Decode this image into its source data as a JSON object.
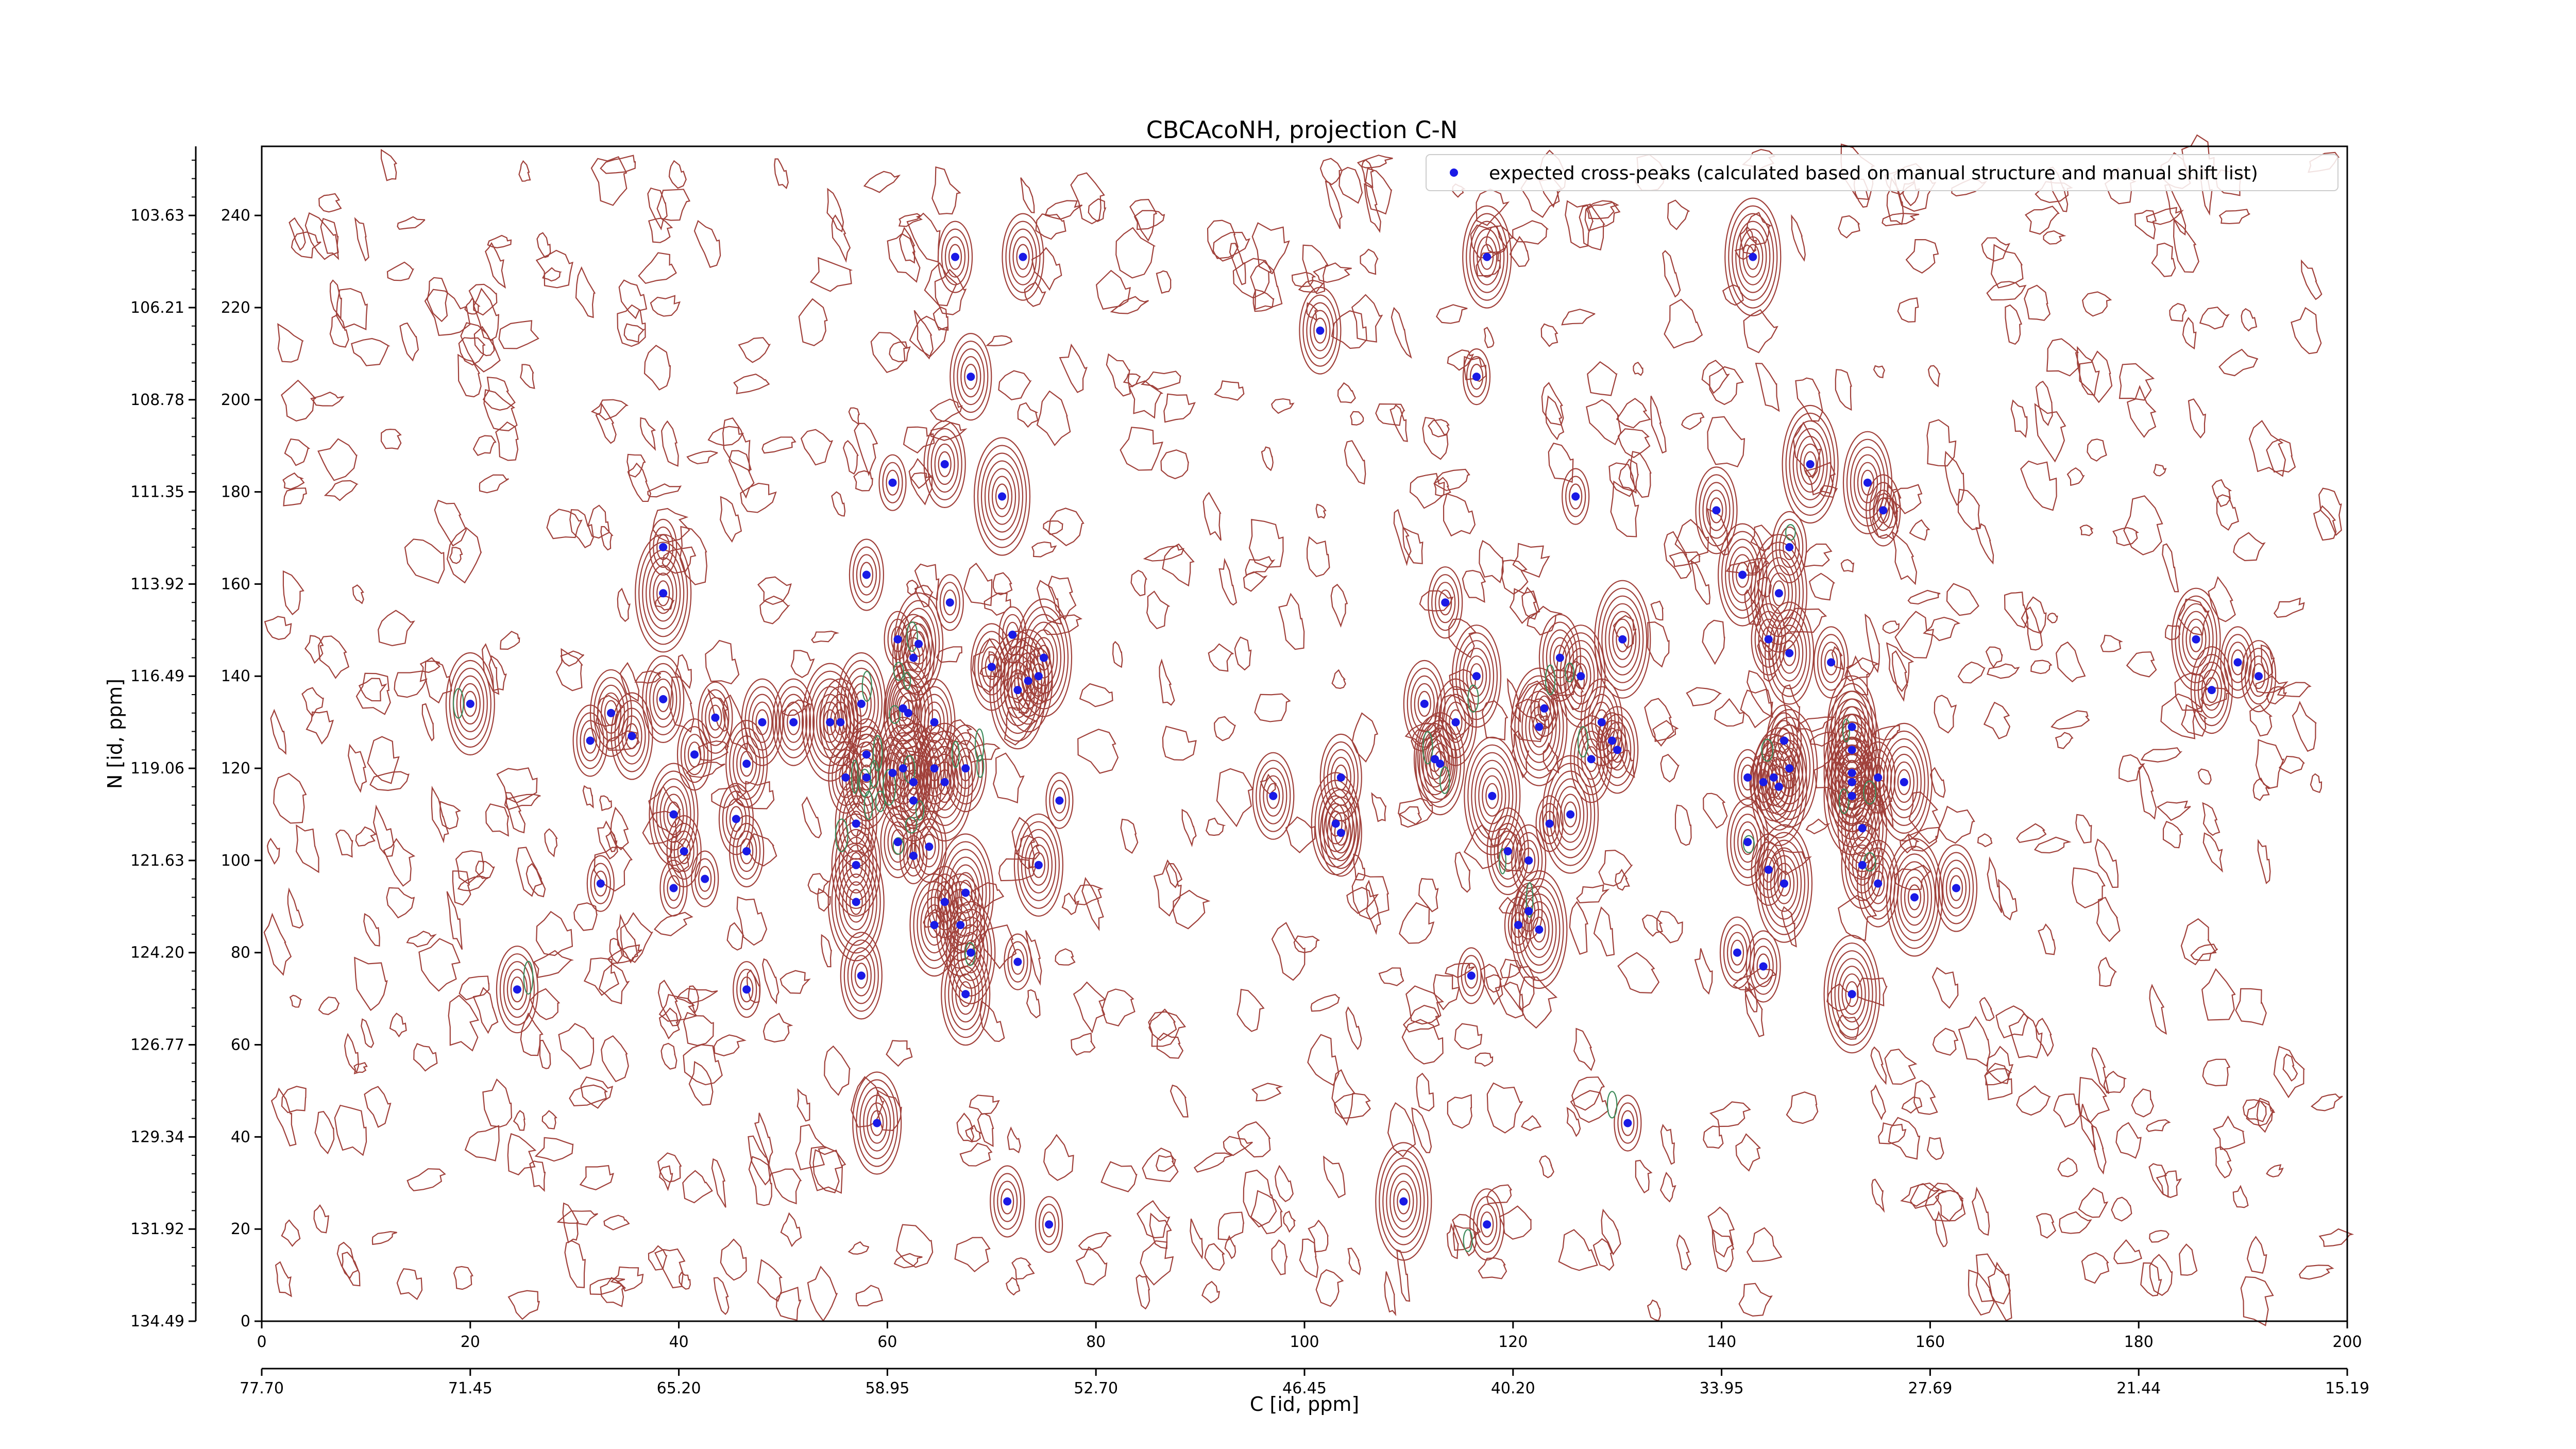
{
  "chart_data": {
    "type": "scatter",
    "title": "CBCAcoNH, projection C-N",
    "xlabel": "C [id, ppm]",
    "ylabel": "N [id, ppm]",
    "xlim": [
      0,
      200
    ],
    "ylim": [
      0,
      255
    ],
    "x_ticks_points": [
      "0",
      "20",
      "40",
      "60",
      "80",
      "100",
      "120",
      "140",
      "160",
      "180",
      "200"
    ],
    "x_ticks_ppm": [
      "77.70",
      "71.45",
      "65.20",
      "58.95",
      "52.70",
      "46.45",
      "40.20",
      "33.95",
      "27.69",
      "21.44",
      "15.19"
    ],
    "y_ticks_points": [
      "0",
      "20",
      "40",
      "60",
      "80",
      "100",
      "120",
      "140",
      "160",
      "180",
      "200",
      "220",
      "240"
    ],
    "y_ticks_ppm": [
      "134.49",
      "131.92",
      "129.34",
      "126.77",
      "124.20",
      "121.63",
      "119.06",
      "116.49",
      "113.92",
      "111.35",
      "108.78",
      "106.21",
      "103.63"
    ],
    "contour_colors": {
      "positive": "#a0403a",
      "negative": "#3d8a5a"
    },
    "marker_color": "#1a1ae6",
    "legend": {
      "label": "expected cross-peaks (calculated based on manual structure and manual shift list)",
      "placement": "top-right"
    },
    "grid": false,
    "series": [
      {
        "name": "expected cross-peaks (calculated based on manual structure and manual shift list)",
        "points": [
          [
            66.5,
            231
          ],
          [
            73,
            231
          ],
          [
            117.5,
            231
          ],
          [
            143,
            231
          ],
          [
            101.5,
            215
          ],
          [
            68,
            205
          ],
          [
            116.5,
            205
          ],
          [
            60.5,
            182
          ],
          [
            65.5,
            186
          ],
          [
            71,
            179
          ],
          [
            126,
            179
          ],
          [
            148.5,
            186
          ],
          [
            154,
            182
          ],
          [
            155.5,
            176
          ],
          [
            139.5,
            176
          ],
          [
            38.5,
            168
          ],
          [
            146.5,
            168
          ],
          [
            38.5,
            158
          ],
          [
            58,
            162
          ],
          [
            113.5,
            156
          ],
          [
            142,
            162
          ],
          [
            145.5,
            158
          ],
          [
            61,
            148
          ],
          [
            62.5,
            144
          ],
          [
            66,
            156
          ],
          [
            63,
            147
          ],
          [
            72,
            149
          ],
          [
            70,
            142
          ],
          [
            75,
            144
          ],
          [
            72.5,
            137
          ],
          [
            73.5,
            139
          ],
          [
            74.5,
            140
          ],
          [
            116.5,
            140
          ],
          [
            124.5,
            144
          ],
          [
            126.5,
            140
          ],
          [
            130.5,
            148
          ],
          [
            144.5,
            148
          ],
          [
            146.5,
            145
          ],
          [
            150.5,
            143
          ],
          [
            20,
            134
          ],
          [
            38.5,
            135
          ],
          [
            31.5,
            126
          ],
          [
            33.5,
            132
          ],
          [
            35.5,
            127
          ],
          [
            43.5,
            131
          ],
          [
            48,
            130
          ],
          [
            51,
            130
          ],
          [
            54.5,
            130
          ],
          [
            55.5,
            130
          ],
          [
            57.5,
            134
          ],
          [
            62,
            132
          ],
          [
            61.5,
            133
          ],
          [
            64.5,
            130
          ],
          [
            123,
            133
          ],
          [
            111.5,
            134
          ],
          [
            128.5,
            130
          ],
          [
            41.5,
            123
          ],
          [
            46.5,
            121
          ],
          [
            56,
            118
          ],
          [
            58,
            123
          ],
          [
            58,
            118
          ],
          [
            60.5,
            119
          ],
          [
            61.5,
            120
          ],
          [
            62.5,
            117
          ],
          [
            64.5,
            120
          ],
          [
            67.5,
            120
          ],
          [
            112.5,
            122
          ],
          [
            113,
            121
          ],
          [
            114.5,
            130
          ],
          [
            122.5,
            129
          ],
          [
            127.5,
            122
          ],
          [
            129.5,
            126
          ],
          [
            130,
            124
          ],
          [
            146,
            126
          ],
          [
            152.5,
            129
          ],
          [
            152.5,
            124
          ],
          [
            39.5,
            110
          ],
          [
            40.5,
            102
          ],
          [
            45.5,
            109
          ],
          [
            57,
            108
          ],
          [
            62.5,
            113
          ],
          [
            65.5,
            117
          ],
          [
            76.5,
            113
          ],
          [
            97,
            114
          ],
          [
            103.5,
            118
          ],
          [
            103.5,
            106
          ],
          [
            103,
            108
          ],
          [
            118,
            114
          ],
          [
            123.5,
            108
          ],
          [
            125.5,
            110
          ],
          [
            142.5,
            104
          ],
          [
            146.5,
            120
          ],
          [
            145,
            118
          ],
          [
            142.5,
            118
          ],
          [
            144,
            117
          ],
          [
            145.5,
            116
          ],
          [
            152.5,
            119
          ],
          [
            152.5,
            117
          ],
          [
            155,
            118
          ],
          [
            157.5,
            117
          ],
          [
            152.5,
            114
          ],
          [
            153.5,
            107
          ],
          [
            32.5,
            95
          ],
          [
            39.5,
            94
          ],
          [
            42.5,
            96
          ],
          [
            46.5,
            102
          ],
          [
            57,
            99
          ],
          [
            57,
            91
          ],
          [
            61,
            104
          ],
          [
            62.5,
            101
          ],
          [
            64,
            103
          ],
          [
            65.5,
            91
          ],
          [
            67.5,
            93
          ],
          [
            74.5,
            99
          ],
          [
            119.5,
            102
          ],
          [
            121.5,
            100
          ],
          [
            144.5,
            98
          ],
          [
            146,
            95
          ],
          [
            153.5,
            99
          ],
          [
            155,
            95
          ],
          [
            158.5,
            92
          ],
          [
            162.5,
            94
          ],
          [
            24.5,
            72
          ],
          [
            46.5,
            72
          ],
          [
            57.5,
            75
          ],
          [
            64.5,
            86
          ],
          [
            67,
            86
          ],
          [
            68,
            80
          ],
          [
            67.5,
            71
          ],
          [
            72.5,
            78
          ],
          [
            116,
            75
          ],
          [
            120.5,
            86
          ],
          [
            121.5,
            89
          ],
          [
            122.5,
            85
          ],
          [
            141.5,
            80
          ],
          [
            144,
            77
          ],
          [
            152.5,
            71
          ],
          [
            59,
            43
          ],
          [
            71.5,
            26
          ],
          [
            75.5,
            21
          ],
          [
            109.5,
            26
          ],
          [
            117.5,
            21
          ],
          [
            131,
            43
          ],
          [
            185.5,
            148
          ],
          [
            187,
            137
          ],
          [
            189.5,
            143
          ],
          [
            191.5,
            140
          ]
        ]
      }
    ]
  }
}
